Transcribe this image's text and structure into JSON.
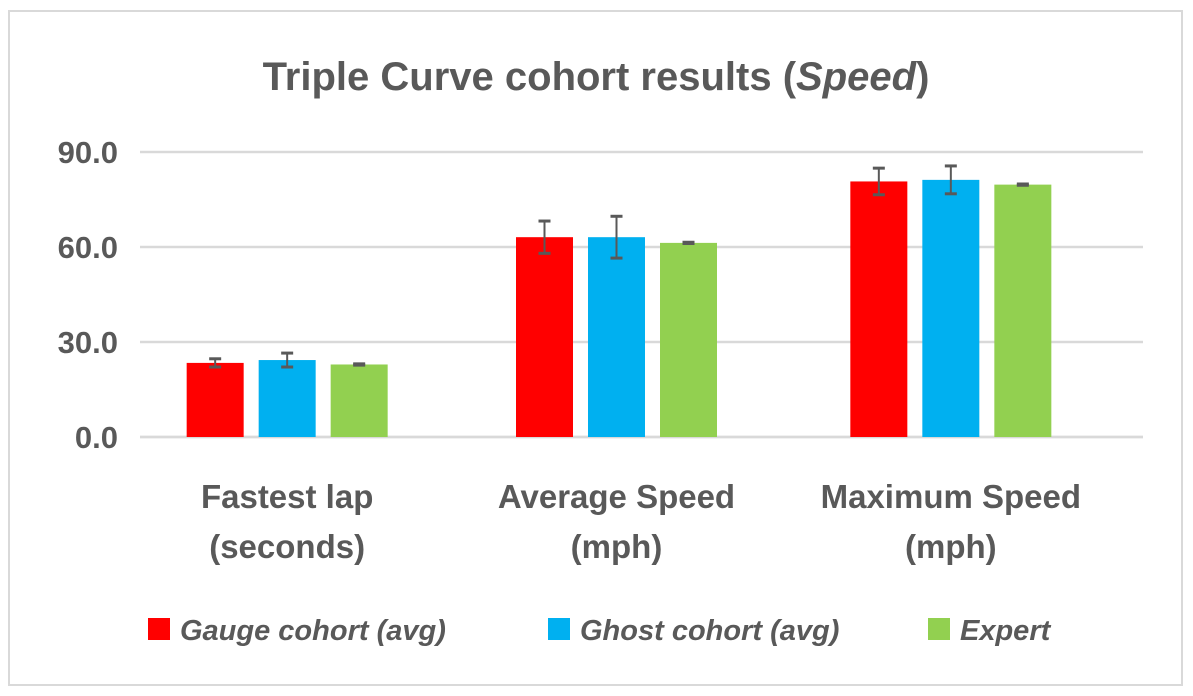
{
  "chart_data": {
    "type": "bar",
    "title": "Triple Curve cohort results (",
    "title_italic": "Speed",
    "title_end": ")",
    "categories": [
      [
        "Fastest lap",
        "(seconds)"
      ],
      [
        "Average Speed",
        "(mph)"
      ],
      [
        "Maximum Speed",
        "(mph)"
      ]
    ],
    "ylim": [
      0,
      90
    ],
    "yticks": [
      "0.0",
      "30.0",
      "60.0",
      "90.0"
    ],
    "grid": true,
    "legend_position": "bottom",
    "series": [
      {
        "name": "Gauge cohort (avg)",
        "color": "#ff0000",
        "values": [
          23.4,
          63.1,
          80.7
        ],
        "errors": [
          1.3,
          5.1,
          4.2
        ]
      },
      {
        "name": "Ghost cohort (avg)",
        "color": "#00b0f0",
        "values": [
          24.3,
          63.1,
          81.2
        ],
        "errors": [
          2.2,
          6.6,
          4.4
        ]
      },
      {
        "name": "Expert",
        "color": "#92d050",
        "values": [
          22.9,
          61.3,
          79.7
        ],
        "errors": [
          0.2,
          0.2,
          0.2
        ]
      }
    ]
  }
}
